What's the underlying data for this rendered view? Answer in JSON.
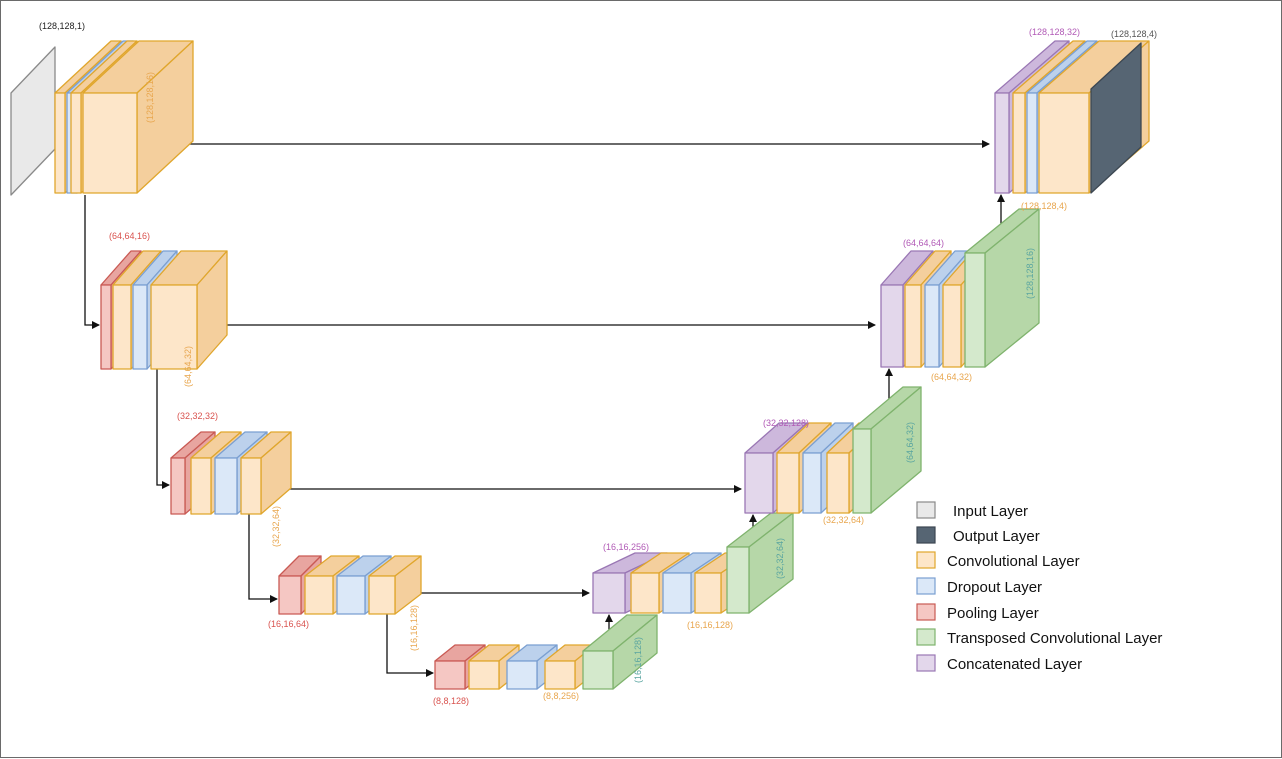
{
  "colors": {
    "input": {
      "fill": "#e9e9e9",
      "side": "#d4d4d4",
      "stroke": "#8a8a8a"
    },
    "output": {
      "fill": "#566573",
      "side": "#45525e",
      "stroke": "#3c4752"
    },
    "conv": {
      "fill": "#fde6c9",
      "side": "#f4cf9d",
      "stroke": "#e0a62c"
    },
    "drop": {
      "fill": "#dbe8f8",
      "side": "#bcd1ec",
      "stroke": "#7a9fd1"
    },
    "pool": {
      "fill": "#f5c7c3",
      "side": "#e8a5a0",
      "stroke": "#c95a54"
    },
    "trans": {
      "fill": "#d4e9cc",
      "side": "#b6d7a8",
      "stroke": "#7fb36d"
    },
    "concat": {
      "fill": "#e3d7eb",
      "side": "#cdb8dc",
      "stroke": "#9a77b4"
    },
    "label_black": "#222222",
    "label_orange": "#e8a64e",
    "label_red": "#d9534f",
    "label_teal": "#5aa5a0",
    "label_purple": "#b15ab6",
    "label_gray": "#555555"
  },
  "icons": [
    "arrow-icon"
  ],
  "labels": {
    "in_shape": "(128,128,1)",
    "enc1_out": "(128,128,16)",
    "pool1": "(64,64,16)",
    "enc2_out": "(64,64,32)",
    "pool2": "(32,32,32)",
    "enc3_out": "(32,32,64)",
    "pool3": "(16,16,64)",
    "enc4_out": "(16,16,128)",
    "pool4": "(8,8,128)",
    "bottleneck_out": "(8,8,256)",
    "up1_trans": "(16,16,128)",
    "dec1_concat": "(16,16,256)",
    "dec1_out": "(16,16,128)",
    "up2_trans": "(32,32,64)",
    "dec2_concat": "(32,32,128)",
    "dec2_out": "(32,32,64)",
    "up3_trans": "(64,64,32)",
    "dec3_concat": "(64,64,64)",
    "dec3_out": "(64,64,32)",
    "up4_trans": "(128,128,16)",
    "dec4_concat": "(128,128,32)",
    "dec4_out": "(128,128,4)",
    "out_shape": "(128,128,4)"
  },
  "legend": [
    {
      "key": "input",
      "label": "Input Layer"
    },
    {
      "key": "output",
      "label": "Output Layer"
    },
    {
      "key": "conv",
      "label": "Convolutional Layer"
    },
    {
      "key": "drop",
      "label": "Dropout Layer"
    },
    {
      "key": "pool",
      "label": "Pooling Layer"
    },
    {
      "key": "trans",
      "label": "Transposed Convolutional Layer"
    },
    {
      "key": "concat",
      "label": "Concatenated Layer"
    }
  ]
}
